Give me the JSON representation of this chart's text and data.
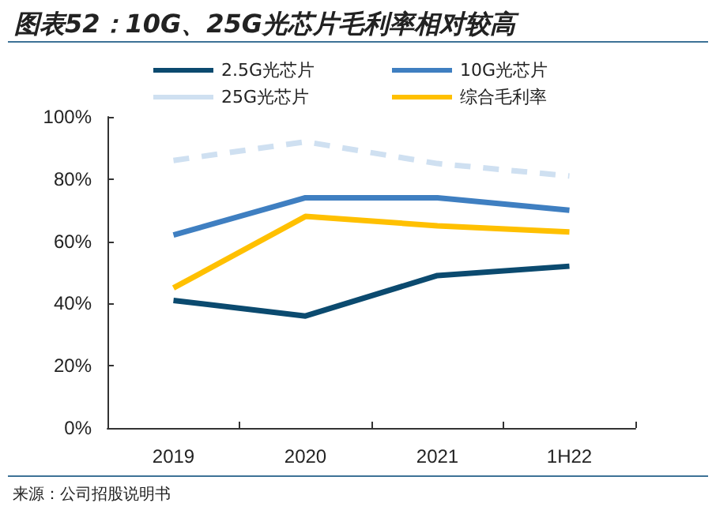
{
  "chart_data": {
    "type": "line",
    "title": "图表52：10G、25G光芯片毛利率相对较高",
    "categories": [
      "2019",
      "2020",
      "2021",
      "1H22"
    ],
    "series": [
      {
        "name": "2.5G光芯片",
        "color": "#0b4a6f",
        "values": [
          41,
          36,
          49,
          52
        ]
      },
      {
        "name": "10G光芯片",
        "color": "#3f7fc1",
        "values": [
          62,
          74,
          74,
          70
        ]
      },
      {
        "name": "25G光芯片",
        "color": "#cfe0f1",
        "values": [
          86,
          92,
          85,
          81
        ],
        "line_style": "dashed"
      },
      {
        "name": "综合毛利率",
        "color": "#ffc000",
        "values": [
          45,
          68,
          65,
          63
        ]
      }
    ],
    "ylim": [
      0,
      100
    ],
    "yticks": [
      {
        "value": 0,
        "label": "0%"
      },
      {
        "value": 20,
        "label": "20%"
      },
      {
        "value": 40,
        "label": "40%"
      },
      {
        "value": 60,
        "label": "60%"
      },
      {
        "value": 80,
        "label": "80%"
      },
      {
        "value": 100,
        "label": "100%"
      }
    ],
    "grid": false,
    "legend": "top",
    "marker": "none",
    "line_style": "solid",
    "annotations": [
      "来源：公司招股说明书"
    ]
  }
}
